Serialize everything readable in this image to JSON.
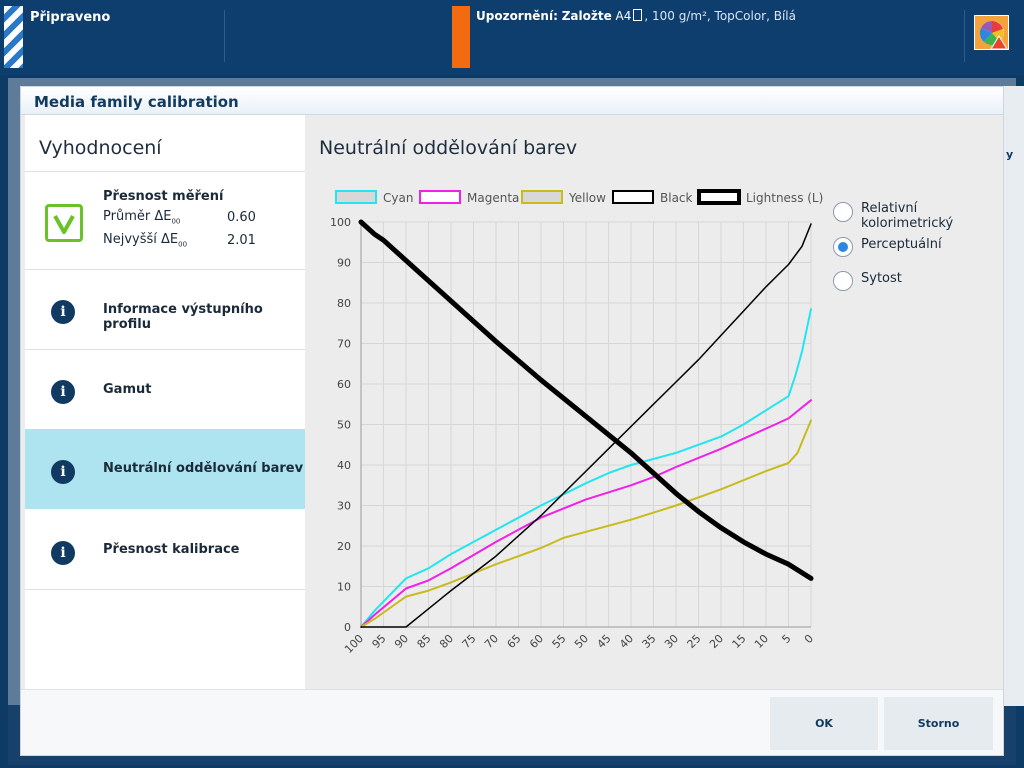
{
  "topbar": {
    "status": "Připraveno",
    "warning_label": "Upozornění:",
    "warning_action": "Založte",
    "warning_size": "A4",
    "warning_details": ", 100 g/m², TopColor, Bílá"
  },
  "dialog": {
    "title": "Media family calibration",
    "left_title": "Vyhodnocení",
    "nav": [
      {
        "label": "Přesnost měření"
      },
      {
        "label": "Informace výstupního profilu"
      },
      {
        "label": "Gamut"
      },
      {
        "label": "Neutrální oddělování barev"
      },
      {
        "label": "Přesnost kalibrace"
      }
    ],
    "stats": {
      "avg_label": "Průměr ΔE",
      "avg_sub": "00",
      "avg_value": "0.60",
      "max_label": "Nejvyšší ΔE",
      "max_sub": "00",
      "max_value": "2.01"
    },
    "main_title": "Neutrální oddělování barev",
    "options": [
      {
        "label": "Relativní kolorimetrický",
        "selected": false
      },
      {
        "label": "Perceptuální",
        "selected": true
      },
      {
        "label": "Sytost",
        "selected": false
      }
    ],
    "ok_label": "OK",
    "cancel_label": "Storno"
  },
  "rightbar_text": "y",
  "chart_data": {
    "type": "line",
    "x_ticks": [
      100,
      95,
      90,
      85,
      80,
      75,
      70,
      65,
      60,
      55,
      50,
      45,
      40,
      35,
      30,
      25,
      20,
      15,
      10,
      5,
      0
    ],
    "y_ticks": [
      0,
      10,
      20,
      30,
      40,
      50,
      60,
      70,
      80,
      90,
      100
    ],
    "xlim": [
      100,
      0
    ],
    "ylim": [
      0,
      100
    ],
    "grid": true,
    "legend_position": "top",
    "series": [
      {
        "name": "Cyan",
        "color": "#22e5f0",
        "width": 2,
        "x": [
          100,
          97,
          90,
          85,
          80,
          70,
          60,
          50,
          45,
          40,
          30,
          20,
          15,
          10,
          5,
          3.5,
          2,
          0
        ],
        "y": [
          0,
          4,
          12,
          14.5,
          18,
          24,
          30,
          35.5,
          38,
          40,
          43,
          47,
          50,
          53.5,
          57,
          62,
          68,
          78.5
        ]
      },
      {
        "name": "Magenta",
        "color": "#f020e8",
        "width": 2,
        "x": [
          100,
          97,
          90,
          85,
          80,
          70,
          60,
          50,
          40,
          35,
          30,
          20,
          15,
          10,
          5,
          0
        ],
        "y": [
          0,
          3,
          9.5,
          11.5,
          14.5,
          21,
          27,
          31.5,
          35,
          37,
          39.5,
          44,
          46.5,
          49,
          51.5,
          56
        ]
      },
      {
        "name": "Yellow",
        "color": "#c8bb1e",
        "width": 2,
        "x": [
          100,
          97,
          90,
          85,
          80,
          70,
          60,
          55,
          50,
          40,
          30,
          20,
          10,
          5,
          3,
          0
        ],
        "y": [
          0,
          2,
          7.5,
          9,
          11,
          15.5,
          19.5,
          22,
          23.5,
          26.5,
          30,
          34,
          38.5,
          40.5,
          43,
          51
        ]
      },
      {
        "name": "Black",
        "color": "#000000",
        "width": 1.5,
        "x": [
          100,
          95,
          90,
          85,
          80,
          70,
          60,
          50,
          45,
          40,
          35,
          30,
          25,
          20,
          15,
          10,
          5,
          2,
          0
        ],
        "y": [
          0,
          0,
          0,
          4.5,
          9,
          17.5,
          27.5,
          38.5,
          44,
          49.5,
          55,
          60.5,
          66,
          72,
          78,
          84,
          89.5,
          94,
          99.5
        ]
      },
      {
        "name": "Lightness (L)",
        "color": "#000000",
        "width": 5,
        "x": [
          100,
          97,
          95,
          90,
          80,
          70,
          60,
          50,
          40,
          35,
          30,
          25,
          20,
          15,
          10,
          5,
          0
        ],
        "y": [
          100,
          97,
          95.5,
          90.5,
          80.5,
          70.5,
          61,
          52,
          43,
          38,
          33,
          28.5,
          24.5,
          21,
          18,
          15.5,
          12
        ]
      }
    ]
  }
}
